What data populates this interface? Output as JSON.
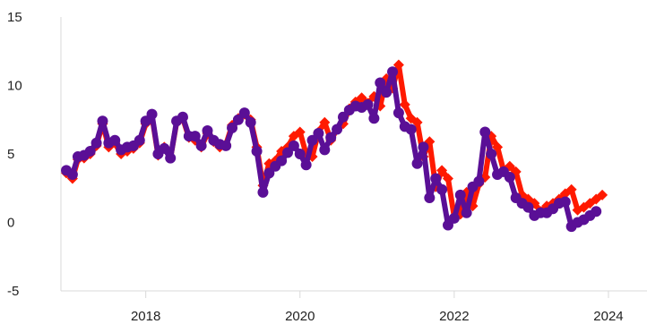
{
  "chart_data": {
    "type": "line",
    "title": "",
    "xlabel": "",
    "ylabel": "",
    "xlim": [
      2016.9,
      2024.5
    ],
    "ylim": [
      -5,
      15
    ],
    "y_ticks": [
      "-5",
      "0",
      "5",
      "10",
      "15"
    ],
    "x_ticks": [
      "2018",
      "2020",
      "2022",
      "2024"
    ],
    "grid": false,
    "legend": "none",
    "series": [
      {
        "color": "#ff1a00",
        "marker": "diamond",
        "points": [
          [
            2016.97,
            3.6
          ],
          [
            2017.05,
            3.2
          ],
          [
            2017.12,
            4.6
          ],
          [
            2017.2,
            4.7
          ],
          [
            2017.28,
            5.0
          ],
          [
            2017.36,
            5.6
          ],
          [
            2017.44,
            7.2
          ],
          [
            2017.52,
            5.5
          ],
          [
            2017.6,
            5.8
          ],
          [
            2017.68,
            5.0
          ],
          [
            2017.76,
            5.2
          ],
          [
            2017.84,
            5.4
          ],
          [
            2017.92,
            5.8
          ],
          [
            2018.0,
            7.2
          ],
          [
            2018.08,
            7.8
          ],
          [
            2018.16,
            4.9
          ],
          [
            2018.24,
            5.5
          ],
          [
            2018.32,
            4.7
          ],
          [
            2018.4,
            7.3
          ],
          [
            2018.48,
            7.6
          ],
          [
            2018.56,
            6.2
          ],
          [
            2018.64,
            6.0
          ],
          [
            2018.72,
            5.5
          ],
          [
            2018.8,
            6.5
          ],
          [
            2018.88,
            5.9
          ],
          [
            2018.96,
            5.5
          ],
          [
            2019.04,
            5.7
          ],
          [
            2019.12,
            7.1
          ],
          [
            2019.2,
            7.6
          ],
          [
            2019.28,
            7.9
          ],
          [
            2019.36,
            7.5
          ],
          [
            2019.44,
            5.5
          ],
          [
            2019.52,
            2.7
          ],
          [
            2019.6,
            4.3
          ],
          [
            2019.68,
            4.5
          ],
          [
            2019.76,
            5.2
          ],
          [
            2019.84,
            5.5
          ],
          [
            2019.92,
            6.3
          ],
          [
            2020.0,
            6.6
          ],
          [
            2020.08,
            5.0
          ],
          [
            2020.16,
            4.8
          ],
          [
            2020.24,
            6.6
          ],
          [
            2020.32,
            7.3
          ],
          [
            2020.4,
            6.0
          ],
          [
            2020.48,
            6.8
          ],
          [
            2020.56,
            7.2
          ],
          [
            2020.64,
            8.3
          ],
          [
            2020.72,
            8.8
          ],
          [
            2020.8,
            9.1
          ],
          [
            2020.88,
            8.7
          ],
          [
            2020.96,
            9.2
          ],
          [
            2021.04,
            8.5
          ],
          [
            2021.12,
            10.5
          ],
          [
            2021.2,
            9.8
          ],
          [
            2021.28,
            11.5
          ],
          [
            2021.36,
            8.6
          ],
          [
            2021.44,
            7.6
          ],
          [
            2021.52,
            7.3
          ],
          [
            2021.6,
            4.8
          ],
          [
            2021.68,
            5.9
          ],
          [
            2021.76,
            2.6
          ],
          [
            2021.84,
            3.8
          ],
          [
            2021.92,
            3.2
          ],
          [
            2022.0,
            0.4
          ],
          [
            2022.08,
            0.6
          ],
          [
            2022.16,
            2.2
          ],
          [
            2022.24,
            1.2
          ],
          [
            2022.32,
            2.8
          ],
          [
            2022.4,
            3.3
          ],
          [
            2022.48,
            6.3
          ],
          [
            2022.56,
            5.5
          ],
          [
            2022.64,
            3.8
          ],
          [
            2022.72,
            4.1
          ],
          [
            2022.8,
            3.7
          ],
          [
            2022.88,
            2.0
          ],
          [
            2022.96,
            1.7
          ],
          [
            2023.04,
            1.4
          ],
          [
            2023.12,
            0.8
          ],
          [
            2023.2,
            1.2
          ],
          [
            2023.28,
            1.4
          ],
          [
            2023.36,
            1.7
          ],
          [
            2023.44,
            2.1
          ],
          [
            2023.52,
            2.4
          ],
          [
            2023.6,
            0.9
          ],
          [
            2023.68,
            1.1
          ],
          [
            2023.76,
            1.4
          ],
          [
            2023.84,
            1.7
          ],
          [
            2023.92,
            2.0
          ]
        ]
      },
      {
        "color": "#5a0f96",
        "marker": "circle",
        "points": [
          [
            2016.97,
            3.8
          ],
          [
            2017.05,
            3.5
          ],
          [
            2017.12,
            4.8
          ],
          [
            2017.2,
            4.9
          ],
          [
            2017.28,
            5.2
          ],
          [
            2017.36,
            5.8
          ],
          [
            2017.44,
            7.4
          ],
          [
            2017.52,
            5.8
          ],
          [
            2017.6,
            6.0
          ],
          [
            2017.68,
            5.3
          ],
          [
            2017.76,
            5.5
          ],
          [
            2017.84,
            5.6
          ],
          [
            2017.92,
            6.0
          ],
          [
            2018.0,
            7.4
          ],
          [
            2018.08,
            7.9
          ],
          [
            2018.16,
            5.0
          ],
          [
            2018.24,
            5.4
          ],
          [
            2018.32,
            4.7
          ],
          [
            2018.4,
            7.4
          ],
          [
            2018.48,
            7.7
          ],
          [
            2018.56,
            6.3
          ],
          [
            2018.64,
            6.3
          ],
          [
            2018.72,
            5.6
          ],
          [
            2018.8,
            6.7
          ],
          [
            2018.88,
            6.0
          ],
          [
            2018.96,
            5.7
          ],
          [
            2019.04,
            5.6
          ],
          [
            2019.12,
            6.9
          ],
          [
            2019.2,
            7.5
          ],
          [
            2019.28,
            8.0
          ],
          [
            2019.36,
            7.3
          ],
          [
            2019.44,
            5.2
          ],
          [
            2019.52,
            2.2
          ],
          [
            2019.6,
            3.6
          ],
          [
            2019.68,
            4.1
          ],
          [
            2019.76,
            4.5
          ],
          [
            2019.84,
            5.1
          ],
          [
            2019.92,
            5.6
          ],
          [
            2020.0,
            5.0
          ],
          [
            2020.08,
            4.2
          ],
          [
            2020.16,
            6.0
          ],
          [
            2020.24,
            6.5
          ],
          [
            2020.32,
            5.3
          ],
          [
            2020.4,
            6.2
          ],
          [
            2020.48,
            6.8
          ],
          [
            2020.56,
            7.7
          ],
          [
            2020.64,
            8.2
          ],
          [
            2020.72,
            8.5
          ],
          [
            2020.8,
            8.4
          ],
          [
            2020.88,
            8.6
          ],
          [
            2020.96,
            7.6
          ],
          [
            2021.04,
            10.2
          ],
          [
            2021.12,
            9.5
          ],
          [
            2021.2,
            11.0
          ],
          [
            2021.28,
            8.0
          ],
          [
            2021.36,
            7.0
          ],
          [
            2021.44,
            6.8
          ],
          [
            2021.52,
            4.3
          ],
          [
            2021.6,
            5.5
          ],
          [
            2021.68,
            1.8
          ],
          [
            2021.76,
            3.2
          ],
          [
            2021.84,
            2.4
          ],
          [
            2021.92,
            -0.2
          ],
          [
            2022.0,
            0.3
          ],
          [
            2022.08,
            2.0
          ],
          [
            2022.16,
            0.7
          ],
          [
            2022.24,
            2.6
          ],
          [
            2022.32,
            3.0
          ],
          [
            2022.4,
            6.6
          ],
          [
            2022.48,
            5.0
          ],
          [
            2022.56,
            3.5
          ],
          [
            2022.64,
            3.7
          ],
          [
            2022.72,
            3.3
          ],
          [
            2022.8,
            1.8
          ],
          [
            2022.88,
            1.4
          ],
          [
            2022.96,
            1.1
          ],
          [
            2023.04,
            0.5
          ],
          [
            2023.12,
            0.7
          ],
          [
            2023.2,
            0.7
          ],
          [
            2023.28,
            1.0
          ],
          [
            2023.36,
            1.4
          ],
          [
            2023.44,
            1.5
          ],
          [
            2023.52,
            -0.3
          ],
          [
            2023.6,
            0.0
          ],
          [
            2023.68,
            0.2
          ],
          [
            2023.76,
            0.5
          ],
          [
            2023.84,
            0.8
          ]
        ]
      }
    ]
  }
}
